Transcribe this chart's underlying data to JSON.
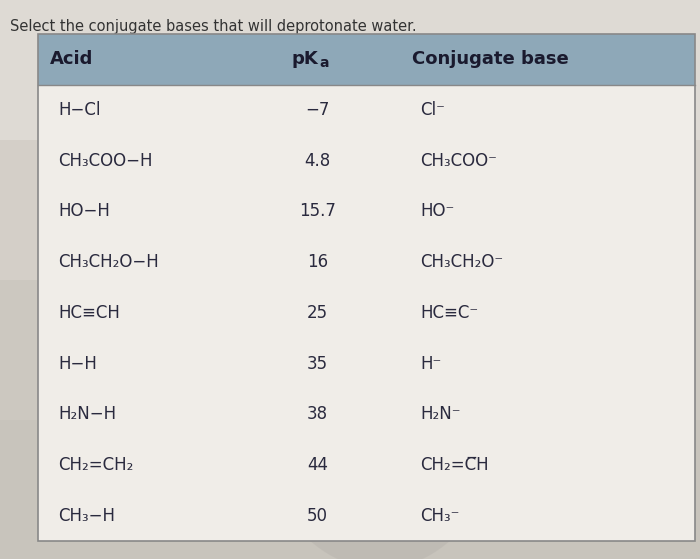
{
  "title": "Select the conjugate bases that will deprotonate water.",
  "rows": [
    {
      "acid": "H−Cl",
      "pka": "−7",
      "base": "Cl⁻"
    },
    {
      "acid": "CH₃COO−H",
      "pka": "4.8",
      "base": "CH₃COO⁻"
    },
    {
      "acid": "HO−H",
      "pka": "15.7",
      "base": "HO⁻"
    },
    {
      "acid": "CH₃CH₂O−H",
      "pka": "16",
      "base": "CH₃CH₂O⁻"
    },
    {
      "acid": "HC≡CH",
      "pka": "25",
      "base": "HC≡C⁻"
    },
    {
      "acid": "H−H",
      "pka": "35",
      "base": "H⁻"
    },
    {
      "acid": "H₂N−H",
      "pka": "38",
      "base": "H₂N⁻"
    },
    {
      "acid": "CH₂=CH₂",
      "pka": "44",
      "base": "CH₂=C̅H"
    },
    {
      "acid": "CH₃−H",
      "pka": "50",
      "base": "CH₃⁻"
    }
  ],
  "header_bg": "#8ea8b8",
  "header_bg2": "#9ab0bf",
  "table_bg": "#e8e4de",
  "outer_bg": "#d8d3cc",
  "table_border": "#999999",
  "header_text_color": "#1a1a2e",
  "row_text_color": "#2a2a3e",
  "title_fontsize": 10.5,
  "header_fontsize": 13,
  "row_fontsize": 12,
  "fig_bg_top": "#d4cfc8",
  "fig_bg": "#ccc8c0"
}
